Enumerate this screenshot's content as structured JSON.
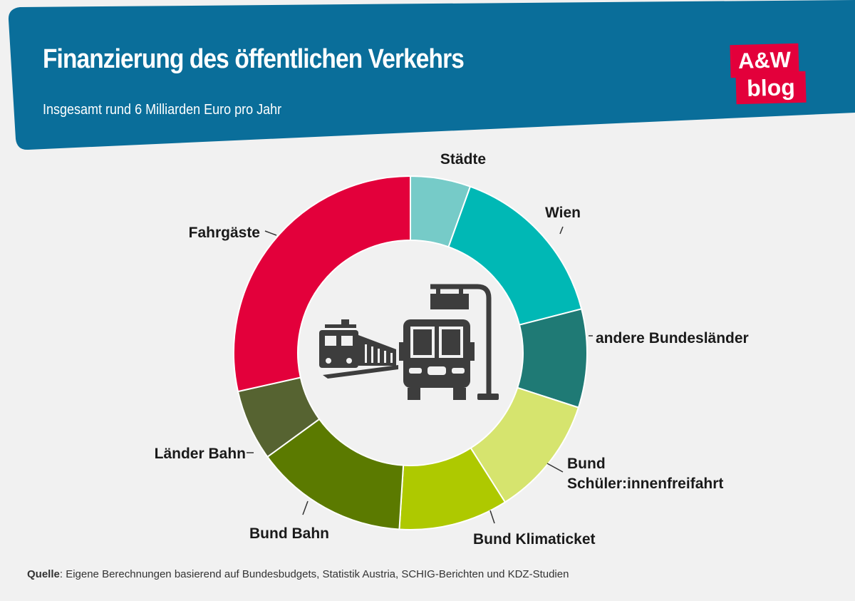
{
  "header": {
    "title": "Finanzierung des öffentlichen Verkehrs",
    "subtitle": "Insgesamt rund 6 Milliarden Euro pro Jahr",
    "background_color": "#0a6e9a"
  },
  "logo": {
    "line1": "A&W",
    "line2": "blog",
    "color": "#e3003b"
  },
  "chart_data": {
    "type": "pie",
    "subtype": "donut",
    "center_icon": "public-transport-icon",
    "slices": [
      {
        "label": "Städte",
        "value": 5.5,
        "color": "#76cbc8"
      },
      {
        "label": "Wien",
        "value": 15.5,
        "color": "#00b8b5"
      },
      {
        "label": "andere Bundesländer",
        "value": 9,
        "color": "#1f7a75"
      },
      {
        "label": "Bund Schüler:innenfreifahrt",
        "value": 11,
        "color": "#d6e46e"
      },
      {
        "label": "Bund Klimaticket",
        "value": 10,
        "color": "#aec900"
      },
      {
        "label": "Bund Bahn",
        "value": 14,
        "color": "#5b7a00"
      },
      {
        "label": "Länder Bahn",
        "value": 6.5,
        "color": "#566331"
      },
      {
        "label": "Fahrgäste",
        "value": 28.5,
        "color": "#e3003b"
      }
    ]
  },
  "source": {
    "prefix": "Quelle",
    "text": ": Eigene Berechnungen basierend auf Bundesbudgets, Statistik Austria, SCHIG-Berichten und KDZ-Studien"
  }
}
